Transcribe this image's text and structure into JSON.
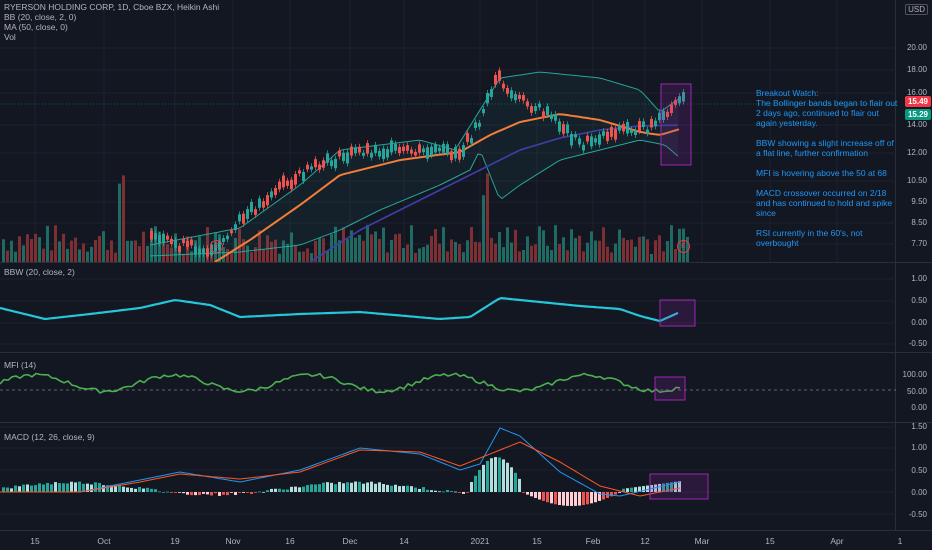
{
  "header": {
    "symbol_line": "RYERSON HOLDING CORP, 1D, Cboe BZX, Heikin Ashi",
    "indicators": [
      "BB (20, close, 2, 0)",
      "MA (50, close, 0)",
      "Vol"
    ],
    "currency": "USD"
  },
  "price_axis": {
    "labels": [
      "20.00",
      "18.00",
      "16.00",
      "14.00",
      "12.00",
      "10.50",
      "9.50",
      "8.50",
      "7.70"
    ],
    "last_price": "15.49",
    "ma_price": "15.29"
  },
  "bbw": {
    "title": "BBW (20, close, 2)",
    "labels": [
      "1.00",
      "0.50",
      "0.00",
      "-0.50"
    ]
  },
  "mfi": {
    "title": "MFI (14)",
    "labels": [
      "100.00",
      "50.00",
      "0.00"
    ]
  },
  "macd": {
    "title": "MACD (12, 26, close, 9)",
    "labels": [
      "1.50",
      "1.00",
      "0.50",
      "0.00",
      "-0.50"
    ]
  },
  "time_axis": [
    "15",
    "Oct",
    "19",
    "Nov",
    "16",
    "Dec",
    "14",
    "2021",
    "15",
    "Feb",
    "12",
    "Mar",
    "15",
    "Apr",
    "1"
  ],
  "earnings_badge": "E",
  "notes": [
    "Breakout Watch:\nThe Bollinger bands began to flair out 2 days ago, continued to flair out again yesterday.",
    "BBW showing a slight increase off of a flat line, further confirmation",
    "MFI is hovering above the 50 at 68",
    "MACD crossover occurred on 2/18 and has continued to hold and spike since",
    "RSI currently in the 60's, not overbought"
  ],
  "colors": {
    "background": "#131722",
    "up": "#26a69a",
    "down": "#ef5350",
    "bb_band": "#26a69a",
    "ma50": "#3f3fa8",
    "bb_basis": "#f57c3a",
    "bbw_line": "#26c6da",
    "mfi_line": "#4caf50",
    "macd_line": "#2196f3",
    "signal_line": "#ff5722",
    "highlight": "#9c27b0",
    "notes_text": "#2196f3",
    "last_price_tag": "#f23645",
    "ma_price_tag": "#089981"
  }
}
